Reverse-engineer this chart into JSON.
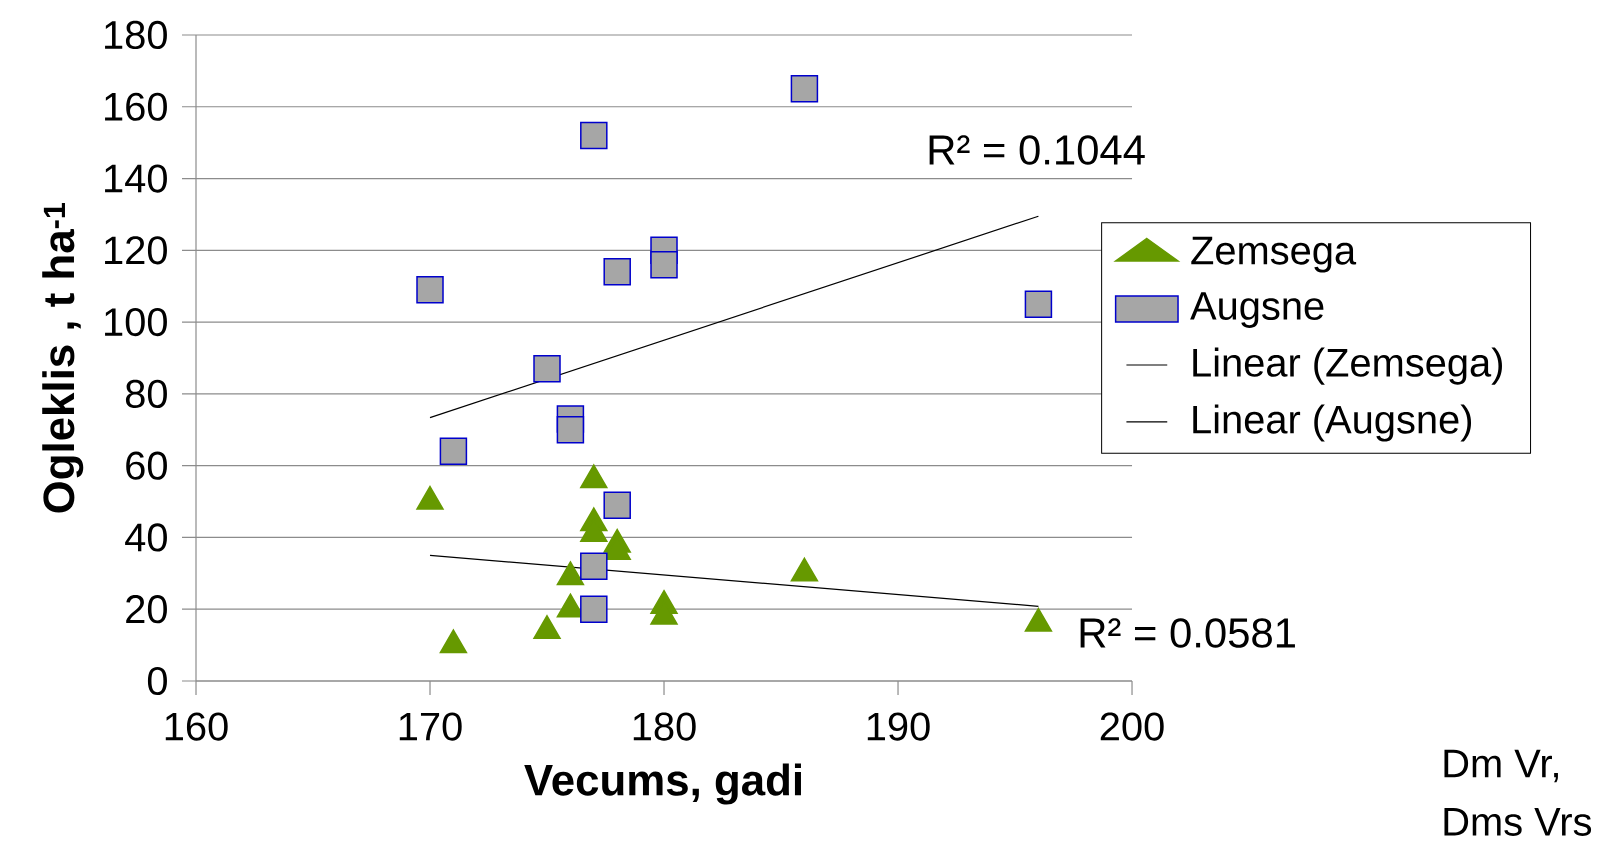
{
  "chart_data": {
    "type": "scatter",
    "xlabel": "Vecums, gadi",
    "ylabel": "Ogleklis , t ha$^{-1}$",
    "xlim": [
      160,
      200
    ],
    "xticks": [
      160,
      170,
      180,
      190,
      200
    ],
    "ylim": [
      0,
      180
    ],
    "yticks": [
      0,
      20,
      40,
      60,
      80,
      100,
      120,
      140,
      160,
      180
    ],
    "grid": "y",
    "legend": "right",
    "series": [
      {
        "name": "Zemsega",
        "color": "#669900",
        "marker": "triangle",
        "x": [
          170,
          171,
          175,
          176,
          176,
          177,
          177,
          177,
          178,
          178,
          180,
          180,
          186,
          196
        ],
        "values": [
          50,
          10,
          14,
          29,
          20,
          56,
          44,
          41,
          38,
          36,
          21,
          18,
          30,
          16
        ]
      },
      {
        "name": "Augsne",
        "color": "#a6a6a6",
        "marker": "square",
        "x": [
          170,
          171,
          175,
          176,
          176,
          177,
          177,
          177,
          178,
          178,
          180,
          180,
          186,
          196
        ],
        "values": [
          109,
          64,
          87,
          73,
          70,
          152,
          32,
          20,
          114,
          49,
          120,
          116,
          165,
          105
        ]
      },
      {
        "name": "Linear (Zemsega)",
        "type": "line",
        "color": "#000000",
        "marker": "none",
        "x": [
          170,
          196
        ],
        "values": [
          35,
          20.8
        ]
      },
      {
        "name": "Linear (Augsne)",
        "type": "line",
        "color": "#000000",
        "marker": "none",
        "x": [
          170,
          196
        ],
        "values": [
          73.4,
          129.5
        ]
      }
    ],
    "annotations": [
      "R² = 0.1044",
      "R² = 0.0581",
      "Dm Vr,",
      "Dms Vrs"
    ]
  }
}
